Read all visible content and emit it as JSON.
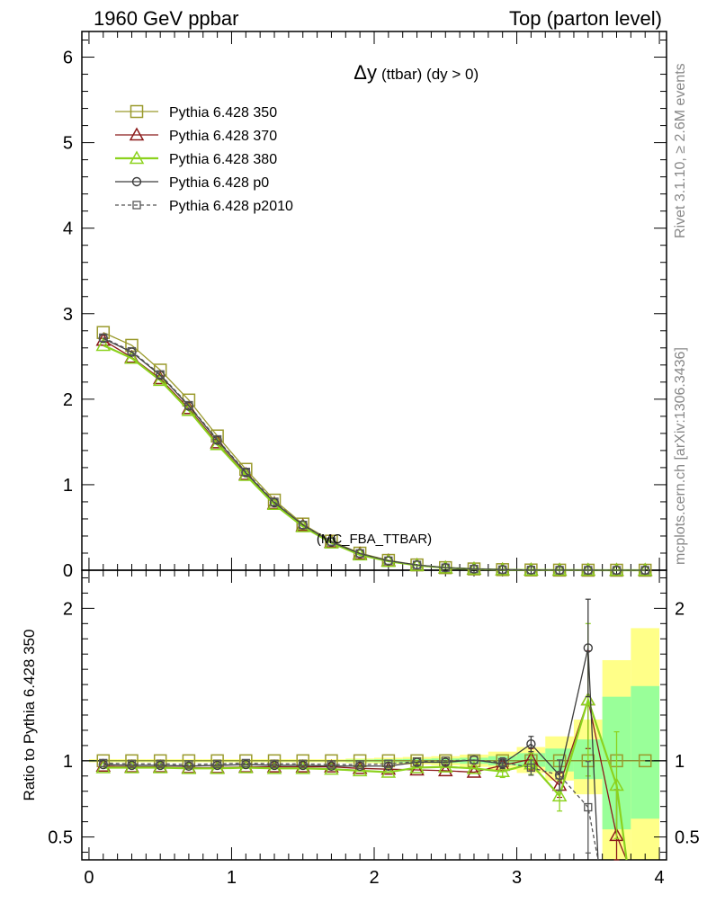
{
  "header": {
    "left": "1960 GeV ppbar",
    "right": "Top (parton level)"
  },
  "side": {
    "rivet": "Rivet 3.1.10, ≥ 2.6M events",
    "mcplots": "mcplots.cern.ch [arXiv:1306.3436]"
  },
  "chart_data": {
    "type": "line",
    "title_main": "Δy",
    "title_sub": "(ttbar) (dy > 0)",
    "watermark": "(MC_FBA_TTBAR)",
    "xlim": [
      -0.05,
      4.05
    ],
    "x_ticks": [
      "0",
      "1",
      "2",
      "3",
      "4"
    ],
    "x_tick_values": [
      0,
      1,
      2,
      3,
      4
    ],
    "main": {
      "ylim": [
        0,
        6.3
      ],
      "y_ticks": [
        "0",
        "1",
        "2",
        "3",
        "4",
        "5",
        "6"
      ],
      "y_tick_values": [
        0,
        1,
        2,
        3,
        4,
        5,
        6
      ]
    },
    "ratio": {
      "ylabel": "Ratio to Pythia 6.428 350",
      "ylim": [
        0.35,
        2.25
      ],
      "y_ticks": [
        "0.5",
        "1",
        "2"
      ],
      "y_tick_values": [
        0.5,
        1,
        2
      ],
      "bands": {
        "x_edges": [
          0.0,
          0.2,
          0.4,
          0.6,
          0.8,
          1.0,
          1.2,
          1.4,
          1.6,
          1.8,
          2.0,
          2.2,
          2.4,
          2.6,
          2.8,
          3.0,
          3.2,
          3.4,
          3.6,
          3.8
        ],
        "yellow": [
          [
            0.99,
            1.01
          ],
          [
            0.99,
            1.01
          ],
          [
            0.99,
            1.01
          ],
          [
            0.99,
            1.01
          ],
          [
            0.99,
            1.01
          ],
          [
            0.99,
            1.01
          ],
          [
            0.99,
            1.01
          ],
          [
            0.99,
            1.01
          ],
          [
            0.99,
            1.01
          ],
          [
            0.985,
            1.015
          ],
          [
            0.98,
            1.02
          ],
          [
            0.975,
            1.025
          ],
          [
            0.97,
            1.03
          ],
          [
            0.96,
            1.04
          ],
          [
            0.94,
            1.06
          ],
          [
            0.92,
            1.09
          ],
          [
            0.87,
            1.16
          ],
          [
            0.78,
            1.27
          ],
          [
            0.35,
            1.66
          ],
          [
            0.35,
            1.87
          ]
        ],
        "green": [
          [
            0.995,
            1.005
          ],
          [
            0.995,
            1.005
          ],
          [
            0.995,
            1.005
          ],
          [
            0.995,
            1.005
          ],
          [
            0.995,
            1.005
          ],
          [
            0.995,
            1.005
          ],
          [
            0.995,
            1.005
          ],
          [
            0.995,
            1.005
          ],
          [
            0.995,
            1.005
          ],
          [
            0.992,
            1.008
          ],
          [
            0.99,
            1.01
          ],
          [
            0.988,
            1.012
          ],
          [
            0.985,
            1.015
          ],
          [
            0.98,
            1.02
          ],
          [
            0.97,
            1.03
          ],
          [
            0.96,
            1.05
          ],
          [
            0.93,
            1.08
          ],
          [
            0.88,
            1.14
          ],
          [
            0.55,
            1.42
          ],
          [
            0.62,
            1.49
          ]
        ]
      }
    },
    "x": [
      0.1,
      0.3,
      0.5,
      0.7,
      0.9,
      1.1,
      1.3,
      1.5,
      1.7,
      1.9,
      2.1,
      2.3,
      2.5,
      2.7,
      2.9,
      3.1,
      3.3,
      3.5,
      3.7,
      3.9
    ],
    "series": [
      {
        "name": "Pythia 6.428 350",
        "color": "#9a9a2c",
        "marker": "square-open",
        "dash": "none",
        "values": [
          2.78,
          2.63,
          2.34,
          1.99,
          1.57,
          1.18,
          0.82,
          0.54,
          0.34,
          0.2,
          0.115,
          0.062,
          0.03,
          0.015,
          0.007,
          0.003,
          0.0013,
          0.0005,
          0.0002,
          0.0001
        ],
        "ratio": [
          1,
          1,
          1,
          1,
          1,
          1,
          1,
          1,
          1,
          1,
          1,
          1,
          1,
          1,
          1,
          1,
          1,
          1,
          1,
          1
        ]
      },
      {
        "name": "Pythia 6.428 370",
        "color": "#8b1a1a",
        "marker": "triangle-open",
        "dash": "none",
        "values": [
          2.69,
          2.49,
          2.24,
          1.89,
          1.49,
          1.12,
          0.78,
          0.52,
          0.33,
          0.19,
          0.11,
          0.058,
          0.028,
          0.014,
          0.006,
          0.003,
          0.0011,
          0.0007,
          0.0001,
          0
        ],
        "ratio": [
          0.965,
          0.96,
          0.96,
          0.955,
          0.955,
          0.96,
          0.96,
          0.96,
          0.96,
          0.95,
          0.945,
          0.94,
          0.935,
          0.925,
          0.97,
          1.01,
          0.84,
          1.4,
          0.51,
          null
        ],
        "ratio_err": [
          null,
          null,
          null,
          null,
          null,
          null,
          null,
          null,
          null,
          null,
          null,
          null,
          null,
          null,
          0.04,
          0.07,
          0.08,
          0.32,
          0.3,
          null
        ]
      },
      {
        "name": "Pythia 6.428 380",
        "color": "#8cd21e",
        "marker": "triangle-open",
        "dash": "none",
        "values": [
          2.63,
          2.48,
          2.22,
          1.87,
          1.47,
          1.11,
          0.77,
          0.51,
          0.32,
          0.18,
          0.105,
          0.057,
          0.028,
          0.014,
          0.006,
          0.003,
          0.001,
          0.0009,
          0.0002,
          5e-05
        ],
        "ratio": [
          0.955,
          0.955,
          0.955,
          0.95,
          0.95,
          0.955,
          0.95,
          0.95,
          0.945,
          0.935,
          0.925,
          0.955,
          0.96,
          0.95,
          0.93,
          0.98,
          0.77,
          1.4,
          0.84,
          null
        ],
        "ratio_err": [
          null,
          null,
          null,
          null,
          null,
          null,
          null,
          null,
          null,
          null,
          null,
          null,
          null,
          null,
          0.04,
          0.07,
          0.1,
          0.5,
          0.35,
          null
        ]
      },
      {
        "name": "Pythia 6.428 p0",
        "color": "#3c3c3c",
        "marker": "circle-open",
        "dash": "none",
        "values": [
          2.71,
          2.55,
          2.28,
          1.92,
          1.52,
          1.14,
          0.79,
          0.53,
          0.33,
          0.195,
          0.11,
          0.062,
          0.03,
          0.015,
          0.007,
          0.003,
          0.0012,
          0.0009,
          5e-05,
          0
        ],
        "ratio": [
          0.975,
          0.97,
          0.97,
          0.965,
          0.97,
          0.975,
          0.97,
          0.97,
          0.965,
          0.965,
          0.965,
          0.99,
          0.99,
          1.005,
          0.98,
          1.11,
          0.905,
          1.74,
          null,
          null
        ],
        "ratio_err": [
          null,
          null,
          null,
          null,
          null,
          null,
          null,
          null,
          null,
          null,
          null,
          null,
          null,
          null,
          0.03,
          0.05,
          0.1,
          0.32,
          null,
          null
        ]
      },
      {
        "name": "Pythia 6.428 p2010",
        "color": "#555555",
        "marker": "square-open-small",
        "dash": "4,3",
        "values": [
          2.72,
          2.56,
          2.29,
          1.93,
          1.53,
          1.15,
          0.8,
          0.53,
          0.335,
          0.197,
          0.112,
          0.062,
          0.03,
          0.015,
          0.007,
          0.003,
          0.0012,
          0.0004,
          0,
          0
        ],
        "ratio": [
          0.985,
          0.98,
          0.98,
          0.975,
          0.98,
          0.985,
          0.98,
          0.98,
          0.975,
          0.975,
          0.98,
          0.995,
          1.0,
          1.005,
          0.99,
          0.955,
          0.905,
          0.695,
          null,
          null
        ],
        "ratio_err": [
          null,
          null,
          null,
          null,
          null,
          null,
          null,
          null,
          null,
          null,
          null,
          null,
          null,
          null,
          0.03,
          0.05,
          0.1,
          0.3,
          null,
          null
        ]
      }
    ]
  }
}
